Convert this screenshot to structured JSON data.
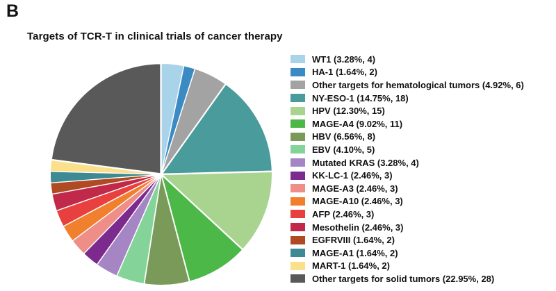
{
  "panel_label": "B",
  "chart_data": {
    "type": "pie",
    "title": "Targets of TCR-T in clinical trials of cancer therapy",
    "legend_position": "right",
    "slices": [
      {
        "label": "WT1 (3.28%, 4)",
        "name": "WT1",
        "percent": 3.28,
        "count": 4,
        "color": "#a9d3e8"
      },
      {
        "label": "HA-1 (1.64%, 2)",
        "name": "HA-1",
        "percent": 1.64,
        "count": 2,
        "color": "#3a8bc4"
      },
      {
        "label": "Other targets for hematological tumors (4.92%, 6)",
        "name": "Other targets for hematological tumors",
        "percent": 4.92,
        "count": 6,
        "color": "#a3a3a3"
      },
      {
        "label": "NY-ESO-1 (14.75%, 18)",
        "name": "NY-ESO-1",
        "percent": 14.75,
        "count": 18,
        "color": "#4a9b9c"
      },
      {
        "label": "HPV (12.30%, 15)",
        "name": "HPV",
        "percent": 12.3,
        "count": 15,
        "color": "#a8d48f"
      },
      {
        "label": "MAGE-A4 (9.02%, 11)",
        "name": "MAGE-A4",
        "percent": 9.02,
        "count": 11,
        "color": "#4cb848"
      },
      {
        "label": "HBV (6.56%, 8)",
        "name": "HBV",
        "percent": 6.56,
        "count": 8,
        "color": "#7a9a5a"
      },
      {
        "label": "EBV (4.10%, 5)",
        "name": "EBV",
        "percent": 4.1,
        "count": 5,
        "color": "#84d49a"
      },
      {
        "label": "Mutated KRAS (3.28%, 4)",
        "name": "Mutated KRAS",
        "percent": 3.28,
        "count": 4,
        "color": "#a585c4"
      },
      {
        "label": "KK-LC-1 (2.46%, 3)",
        "name": "KK-LC-1",
        "percent": 2.46,
        "count": 3,
        "color": "#7d2a8f"
      },
      {
        "label": "MAGE-A3 (2.46%, 3)",
        "name": "MAGE-A3",
        "percent": 2.46,
        "count": 3,
        "color": "#ef8d87"
      },
      {
        "label": "MAGE-A10 (2.46%, 3)",
        "name": "MAGE-A10",
        "percent": 2.46,
        "count": 3,
        "color": "#f07f2e"
      },
      {
        "label": "AFP (2.46%, 3)",
        "name": "AFP",
        "percent": 2.46,
        "count": 3,
        "color": "#e8403f"
      },
      {
        "label": "Mesothelin (2.46%, 3)",
        "name": "Mesothelin",
        "percent": 2.46,
        "count": 3,
        "color": "#c0294a"
      },
      {
        "label": "EGFRVIII (1.64%, 2)",
        "name": "EGFRVIII",
        "percent": 1.64,
        "count": 2,
        "color": "#b04a22"
      },
      {
        "label": "MAGE-A1 (1.64%, 2)",
        "name": "MAGE-A1",
        "percent": 1.64,
        "count": 2,
        "color": "#3d8a94"
      },
      {
        "label": "MART-1 (1.64%, 2)",
        "name": "MART-1",
        "percent": 1.64,
        "count": 2,
        "color": "#fbe08c"
      },
      {
        "label": "Other targets for solid tumors (22.95%, 28)",
        "name": "Other targets for solid tumors",
        "percent": 22.95,
        "count": 28,
        "color": "#595959"
      }
    ]
  }
}
